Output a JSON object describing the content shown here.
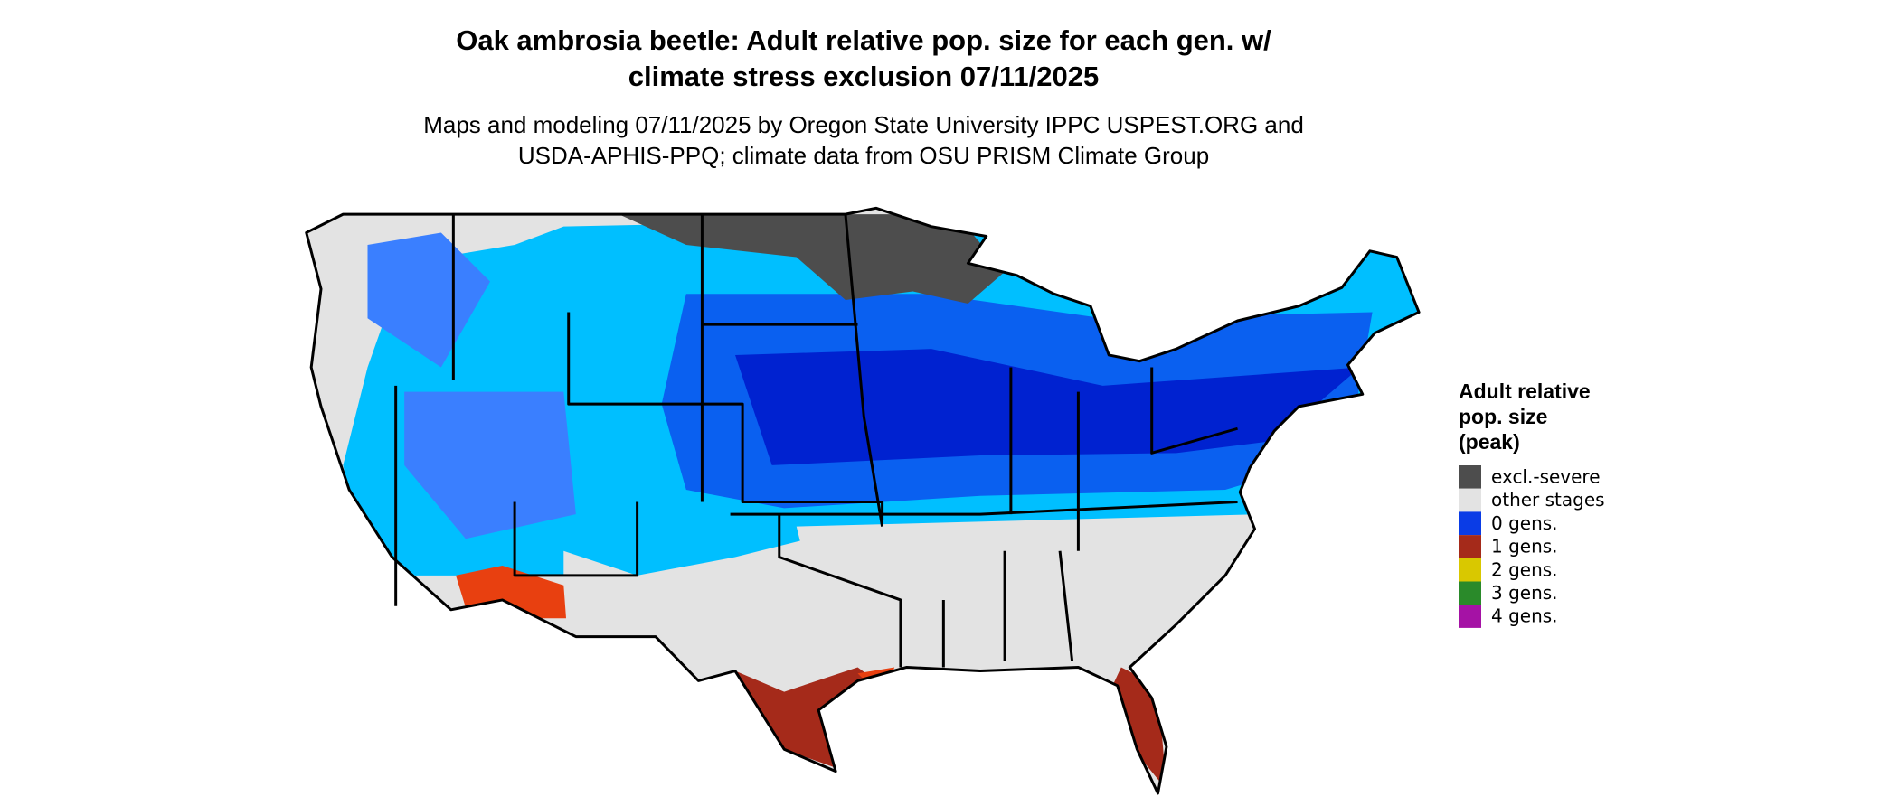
{
  "header": {
    "title": [
      "Oak ambrosia beetle: Adult relative pop. size for each gen. w/",
      "climate stress exclusion 07/11/2025"
    ],
    "subtitle": [
      "Maps and modeling 07/11/2025 by Oregon State University IPPC USPEST.ORG and",
      "USDA-APHIS-PPQ; climate data from OSU PRISM Climate Group"
    ]
  },
  "legend": {
    "title": [
      "Adult relative",
      "pop. size",
      "(peak)"
    ],
    "items": [
      {
        "label": "excl.-severe",
        "color": "#4d4d4d"
      },
      {
        "label": "other stages",
        "color": "#e3e3e3"
      },
      {
        "label": "0 gens.",
        "color": "#0a3ce6"
      },
      {
        "label": "1 gens.",
        "color": "#a52a1a"
      },
      {
        "label": "2 gens.",
        "color": "#d9c800"
      },
      {
        "label": "3 gens.",
        "color": "#2a8a2a"
      },
      {
        "label": "4 gens.",
        "color": "#a512a5"
      }
    ]
  }
}
